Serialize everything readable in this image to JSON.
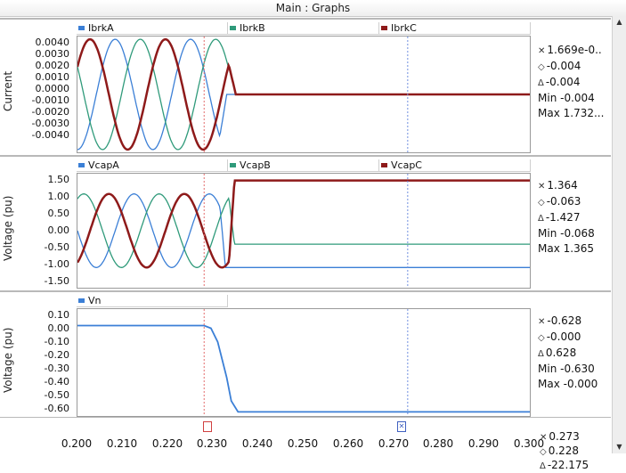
{
  "window": {
    "title": "Main : Graphs"
  },
  "x_axis": {
    "ticks": [
      "0.200",
      "0.210",
      "0.220",
      "0.230",
      "0.240",
      "0.250",
      "0.260",
      "0.270",
      "0.280",
      "0.290",
      "0.300"
    ],
    "range": [
      0.2,
      0.3
    ]
  },
  "markers": {
    "x1": 0.228,
    "x2": 0.273,
    "x1_color": "#e36b6b",
    "x2_color": "#6f8fe0",
    "readout": {
      "x": "0.273",
      "o": "0.228",
      "d": "-22.175"
    }
  },
  "panels": [
    {
      "ylabel": "Current",
      "yticks": [
        "0.0040",
        "0.0030",
        "0.0020",
        "0.0010",
        "0.0000",
        "-0.0010",
        "-0.0020",
        "-0.0030",
        "-0.0040"
      ],
      "legend": [
        {
          "name": "IbrkA",
          "color": "#3b7fd6"
        },
        {
          "name": "IbrkB",
          "color": "#2f9a7a"
        },
        {
          "name": "IbrkC",
          "color": "#8e1a1a"
        }
      ],
      "readout": {
        "x": "1.669e-0..",
        "o": "-0.004",
        "d": "-0.004",
        "min": "Min -0.004",
        "max": "Max 1.732..."
      }
    },
    {
      "ylabel": "Voltage (pu)",
      "yticks": [
        "1.50",
        "1.00",
        "0.50",
        "0.00",
        "-0.50",
        "-1.00",
        "-1.50"
      ],
      "legend": [
        {
          "name": "VcapA",
          "color": "#3b7fd6"
        },
        {
          "name": "VcapB",
          "color": "#2f9a7a"
        },
        {
          "name": "VcapC",
          "color": "#8e1a1a"
        }
      ],
      "readout": {
        "x": "1.364",
        "o": "-0.063",
        "d": "-1.427",
        "min": "Min -0.068",
        "max": "Max 1.365"
      }
    },
    {
      "ylabel": "Voltage (pu)",
      "yticks": [
        "0.10",
        "0.00",
        "-0.10",
        "-0.20",
        "-0.30",
        "-0.40",
        "-0.50",
        "-0.60"
      ],
      "legend": [
        {
          "name": "Vn",
          "color": "#3b7fd6"
        }
      ],
      "readout": {
        "x": "-0.628",
        "o": "-0.000",
        "d": "0.628",
        "min": "Min -0.630",
        "max": "Max -0.000"
      }
    }
  ],
  "chart_data": [
    {
      "type": "line",
      "ylabel": "Current",
      "xlim": [
        0.2,
        0.3
      ],
      "ylim": [
        -0.0042,
        0.0042
      ],
      "series": [
        {
          "name": "IbrkA",
          "amplitude": 0.004,
          "phase_deg": -90,
          "zero_after": 0.2315
        },
        {
          "name": "IbrkB",
          "amplitude": 0.004,
          "phase_deg": 150,
          "zero_after": 0.2335
        },
        {
          "name": "IbrkC",
          "amplitude": 0.004,
          "phase_deg": 30,
          "zero_after": 0.2335
        }
      ],
      "frequency_hz": 60
    },
    {
      "type": "line",
      "ylabel": "Voltage (pu)",
      "xlim": [
        0.2,
        0.3
      ],
      "ylim": [
        -1.55,
        1.55
      ],
      "series": [
        {
          "name": "VcapA",
          "amplitude": 1.0,
          "phase_deg": 180,
          "settle": -1.0,
          "settle_at": 0.2315
        },
        {
          "name": "VcapB",
          "amplitude": 1.0,
          "phase_deg": 60,
          "settle": -0.365,
          "settle_at": 0.2335
        },
        {
          "name": "VcapC",
          "amplitude": 1.0,
          "phase_deg": -60,
          "settle": 1.365,
          "settle_at": 0.2335
        }
      ],
      "frequency_hz": 60
    },
    {
      "type": "line",
      "ylabel": "Voltage (pu)",
      "xlim": [
        0.2,
        0.3
      ],
      "ylim": [
        -0.66,
        0.12
      ],
      "series": [
        {
          "name": "Vn",
          "points": [
            [
              0.2,
              0.0
            ],
            [
              0.228,
              0.0
            ],
            [
              0.2295,
              -0.02
            ],
            [
              0.231,
              -0.12
            ],
            [
              0.233,
              -0.38
            ],
            [
              0.234,
              -0.55
            ],
            [
              0.2355,
              -0.63
            ],
            [
              0.3,
              -0.63
            ]
          ]
        }
      ]
    }
  ]
}
